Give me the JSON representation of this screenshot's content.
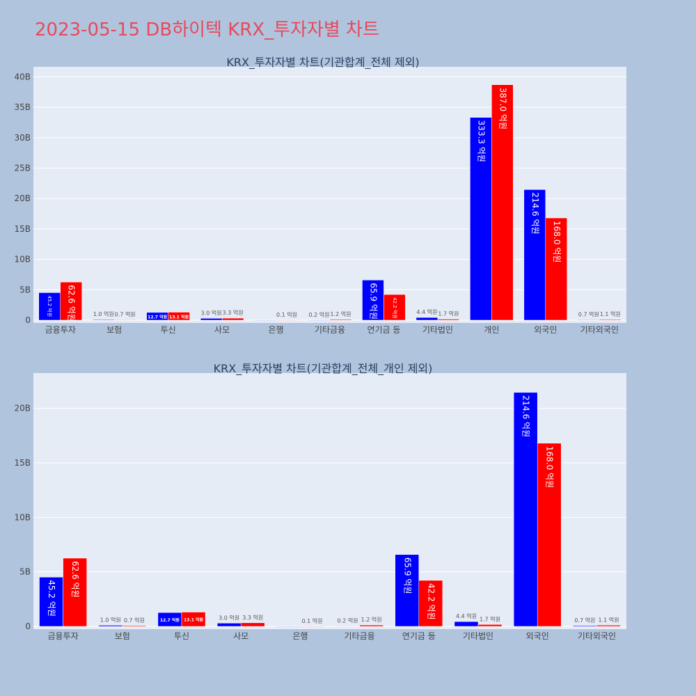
{
  "page_title": "2023-05-15 DB하이텍 KRX_투자자별 차트",
  "colors": {
    "series_a": "#0000ff",
    "series_b": "#ff0000",
    "plot_bg": "#e5ecf6",
    "page_bg": "#b0c4de",
    "title": "#e8495a"
  },
  "chart_data": [
    {
      "type": "bar",
      "title": "KRX_투자자별 차트(기관합계_전체 제외)",
      "categories": [
        "금융투자",
        "보험",
        "투신",
        "사모",
        "은행",
        "기타금융",
        "연기금 등",
        "기타법인",
        "개인",
        "외국인",
        "기타외국인"
      ],
      "y_tick_labels": [
        "0",
        "5B",
        "10B",
        "15B",
        "20B",
        "25B",
        "30B",
        "35B",
        "40B"
      ],
      "ylim": [
        0,
        40.5
      ],
      "grid": true,
      "series": [
        {
          "values": [
            4.52,
            0.1,
            1.27,
            0.3,
            0.0,
            0.02,
            6.59,
            0.44,
            33.33,
            21.46,
            0.07
          ],
          "labels": [
            "45.2 억원",
            "1.0 억원",
            "12.7 억원",
            "3.0 억원",
            "",
            "0.2 억원",
            "65.9 억원",
            "4.4 억원",
            "333.3 억원",
            "214.6 억원",
            "0.7 억원"
          ]
        },
        {
          "values": [
            6.26,
            0.07,
            1.31,
            0.33,
            0.01,
            0.12,
            4.22,
            0.17,
            38.7,
            16.8,
            0.11
          ],
          "labels": [
            "62.6 억원",
            "0.7 억원",
            "13.1 억원",
            "3.3 억원",
            "0.1 억원",
            "1.2 억원",
            "42.2 억원",
            "1.7 억원",
            "387.0 억원",
            "168.0 억원",
            "1.1 억원"
          ]
        }
      ]
    },
    {
      "type": "bar",
      "title": "KRX_투자자별 차트(기관합계_전체_개인 제외)",
      "categories": [
        "금융투자",
        "보험",
        "투신",
        "사모",
        "은행",
        "기타금융",
        "연기금 등",
        "기타법인",
        "외국인",
        "기타외국인"
      ],
      "y_tick_labels": [
        "0",
        "5B",
        "10B",
        "15B",
        "20B"
      ],
      "ylim": [
        0,
        22.6
      ],
      "grid": true,
      "series": [
        {
          "values": [
            4.52,
            0.1,
            1.27,
            0.3,
            0.0,
            0.02,
            6.59,
            0.44,
            21.46,
            0.07
          ],
          "labels": [
            "45.2 억원",
            "1.0 억원",
            "12.7 억원",
            "3.0 억원",
            "",
            "0.2 억원",
            "65.9 억원",
            "4.4 억원",
            "214.6 억원",
            "0.7 억원"
          ]
        },
        {
          "values": [
            6.26,
            0.07,
            1.31,
            0.33,
            0.01,
            0.12,
            4.22,
            0.17,
            16.8,
            0.11
          ],
          "labels": [
            "62.6 억원",
            "0.7 억원",
            "13.1 억원",
            "3.3 억원",
            "0.1 억원",
            "1.2 억원",
            "42.2 억원",
            "1.7 억원",
            "168.0 억원",
            "1.1 억원"
          ]
        }
      ]
    }
  ]
}
